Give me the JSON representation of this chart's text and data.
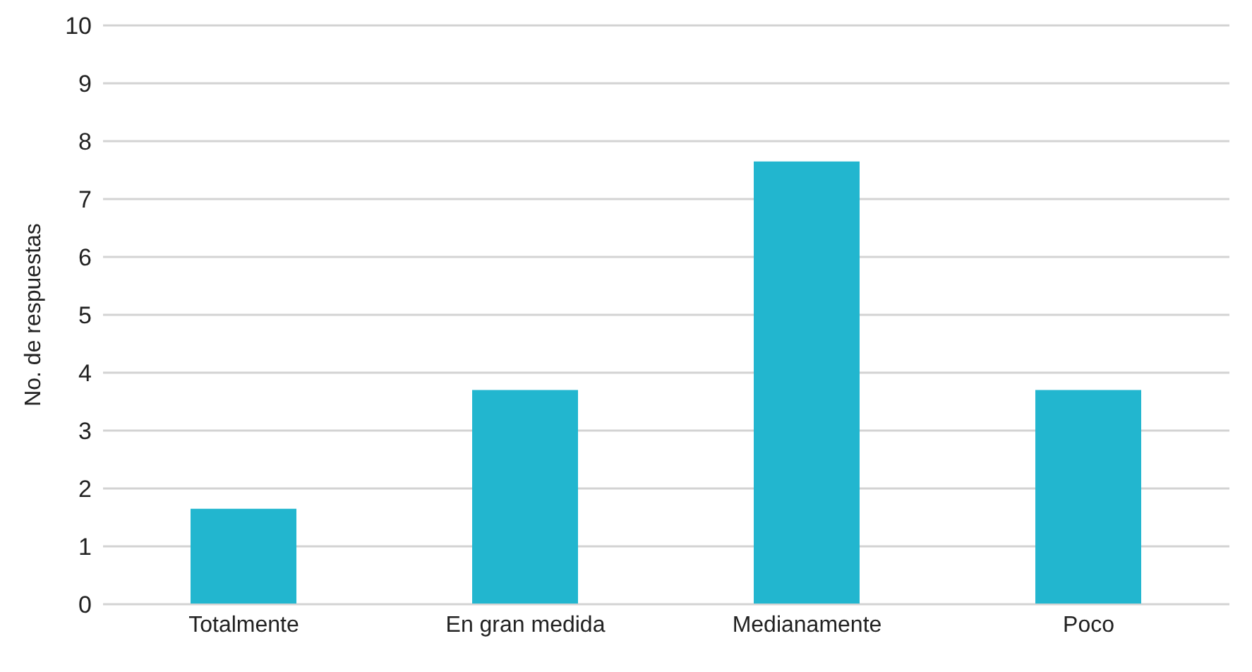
{
  "chart_data": {
    "type": "bar",
    "ylabel": "No. de respuestas",
    "categories": [
      "Totalmente",
      "En gran medida",
      "Medianamente",
      "Poco"
    ],
    "values": [
      1.65,
      3.7,
      7.65,
      3.7
    ],
    "color": "#22b6cf",
    "ylim": [
      0,
      10
    ],
    "yticks": [
      0,
      1,
      2,
      3,
      4,
      5,
      6,
      7,
      8,
      9,
      10
    ],
    "grid": "y"
  }
}
